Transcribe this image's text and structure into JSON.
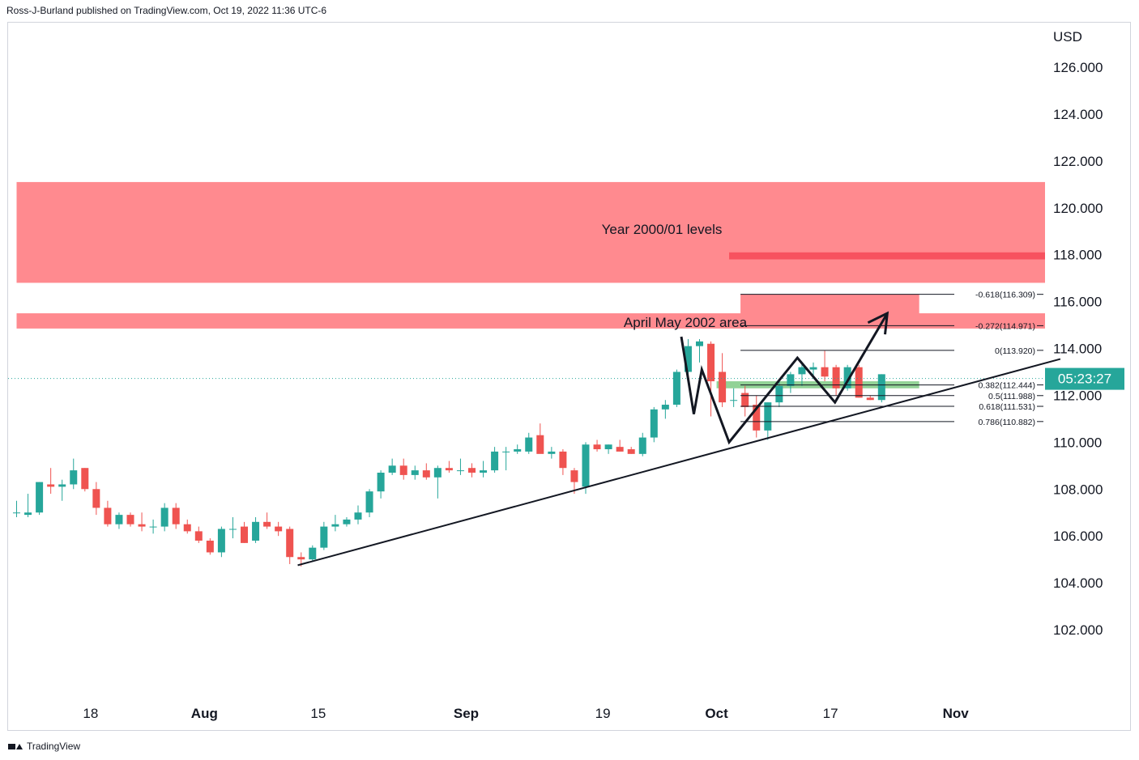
{
  "header": {
    "publisher": "Ross-J-Burland published on TradingView.com, Oct 19, 2022 11:36 UTC-6"
  },
  "footer": {
    "brand": "TradingView"
  },
  "colors": {
    "bull": "#26a69a",
    "bear": "#ef5350",
    "zone": "#ff8a8f",
    "zone_dark": "#f7525f",
    "support_zone": "#7fca84",
    "countdown_bg": "#26a69a"
  },
  "price_axis": {
    "currency": "USD",
    "countdown": "05:23:27"
  },
  "chart_data": {
    "type": "candlestick",
    "title": "",
    "y_unit": "USD",
    "ylim": [
      99.1,
      127.9
    ],
    "y_ticks": [
      {
        "label": "126.000",
        "value": 126
      },
      {
        "label": "124.000",
        "value": 124
      },
      {
        "label": "122.000",
        "value": 122
      },
      {
        "label": "120.000",
        "value": 120
      },
      {
        "label": "118.000",
        "value": 118
      },
      {
        "label": "116.000",
        "value": 116
      },
      {
        "label": "114.000",
        "value": 114
      },
      {
        "label": "112.000",
        "value": 112
      },
      {
        "label": "110.000",
        "value": 110
      },
      {
        "label": "108.000",
        "value": 108
      },
      {
        "label": "106.000",
        "value": 106
      },
      {
        "label": "104.000",
        "value": 104
      },
      {
        "label": "102.000",
        "value": 102
      }
    ],
    "x_ticks": [
      {
        "label": "18",
        "index": 6.5,
        "bold": false
      },
      {
        "label": "Aug",
        "index": 16.5,
        "bold": true
      },
      {
        "label": "15",
        "index": 26.5,
        "bold": false
      },
      {
        "label": "Sep",
        "index": 39.5,
        "bold": true
      },
      {
        "label": "19",
        "index": 51.5,
        "bold": false
      },
      {
        "label": "Oct",
        "index": 61.5,
        "bold": true
      },
      {
        "label": "17",
        "index": 71.5,
        "bold": false
      },
      {
        "label": "Nov",
        "index": 82.5,
        "bold": true
      }
    ],
    "last_price": 112.72,
    "candles": [
      {
        "o": 107.0,
        "h": 107.5,
        "l": 106.8,
        "c": 107.0
      },
      {
        "o": 106.9,
        "h": 107.8,
        "l": 106.8,
        "c": 107.0
      },
      {
        "o": 107.0,
        "h": 108.3,
        "l": 106.9,
        "c": 108.3
      },
      {
        "o": 108.2,
        "h": 108.9,
        "l": 107.8,
        "c": 108.1
      },
      {
        "o": 108.1,
        "h": 108.4,
        "l": 107.5,
        "c": 108.2
      },
      {
        "o": 108.2,
        "h": 109.3,
        "l": 108.0,
        "c": 108.8
      },
      {
        "o": 108.9,
        "h": 108.9,
        "l": 107.9,
        "c": 108.0
      },
      {
        "o": 108.0,
        "h": 108.3,
        "l": 106.9,
        "c": 107.2
      },
      {
        "o": 107.2,
        "h": 107.5,
        "l": 106.4,
        "c": 106.5
      },
      {
        "o": 106.5,
        "h": 107.0,
        "l": 106.3,
        "c": 106.9
      },
      {
        "o": 106.9,
        "h": 107.0,
        "l": 106.4,
        "c": 106.5
      },
      {
        "o": 106.5,
        "h": 107.0,
        "l": 106.2,
        "c": 106.4
      },
      {
        "o": 106.4,
        "h": 106.7,
        "l": 106.1,
        "c": 106.4
      },
      {
        "o": 106.4,
        "h": 107.4,
        "l": 106.2,
        "c": 107.2
      },
      {
        "o": 107.2,
        "h": 107.4,
        "l": 106.3,
        "c": 106.5
      },
      {
        "o": 106.5,
        "h": 106.7,
        "l": 106.1,
        "c": 106.2
      },
      {
        "o": 106.2,
        "h": 106.4,
        "l": 105.7,
        "c": 105.8
      },
      {
        "o": 105.8,
        "h": 105.9,
        "l": 105.2,
        "c": 105.3
      },
      {
        "o": 105.3,
        "h": 106.4,
        "l": 105.1,
        "c": 106.3
      },
      {
        "o": 106.3,
        "h": 106.8,
        "l": 105.9,
        "c": 106.3
      },
      {
        "o": 106.4,
        "h": 106.6,
        "l": 105.7,
        "c": 105.7
      },
      {
        "o": 105.8,
        "h": 106.8,
        "l": 105.7,
        "c": 106.6
      },
      {
        "o": 106.6,
        "h": 107.0,
        "l": 106.3,
        "c": 106.4
      },
      {
        "o": 106.4,
        "h": 106.6,
        "l": 106.0,
        "c": 106.2
      },
      {
        "o": 106.3,
        "h": 106.4,
        "l": 104.8,
        "c": 105.1
      },
      {
        "o": 105.1,
        "h": 105.3,
        "l": 104.7,
        "c": 105.0
      },
      {
        "o": 105.0,
        "h": 105.6,
        "l": 104.9,
        "c": 105.5
      },
      {
        "o": 105.5,
        "h": 106.6,
        "l": 105.4,
        "c": 106.4
      },
      {
        "o": 106.4,
        "h": 106.9,
        "l": 106.2,
        "c": 106.5
      },
      {
        "o": 106.5,
        "h": 106.8,
        "l": 106.4,
        "c": 106.7
      },
      {
        "o": 106.7,
        "h": 107.3,
        "l": 106.5,
        "c": 107.0
      },
      {
        "o": 107.0,
        "h": 108.0,
        "l": 106.8,
        "c": 107.9
      },
      {
        "o": 107.9,
        "h": 108.8,
        "l": 107.6,
        "c": 108.7
      },
      {
        "o": 108.7,
        "h": 109.3,
        "l": 108.6,
        "c": 109.0
      },
      {
        "o": 109.0,
        "h": 109.3,
        "l": 108.4,
        "c": 108.6
      },
      {
        "o": 108.6,
        "h": 109.0,
        "l": 108.4,
        "c": 108.8
      },
      {
        "o": 108.8,
        "h": 109.1,
        "l": 108.4,
        "c": 108.5
      },
      {
        "o": 108.5,
        "h": 109.0,
        "l": 107.6,
        "c": 108.9
      },
      {
        "o": 108.9,
        "h": 109.2,
        "l": 108.7,
        "c": 108.8
      },
      {
        "o": 108.8,
        "h": 109.3,
        "l": 108.6,
        "c": 108.8
      },
      {
        "o": 108.9,
        "h": 109.1,
        "l": 108.5,
        "c": 108.7
      },
      {
        "o": 108.7,
        "h": 109.2,
        "l": 108.5,
        "c": 108.8
      },
      {
        "o": 108.8,
        "h": 109.8,
        "l": 108.7,
        "c": 109.6
      },
      {
        "o": 109.6,
        "h": 109.8,
        "l": 108.8,
        "c": 109.6
      },
      {
        "o": 109.6,
        "h": 109.9,
        "l": 109.5,
        "c": 109.7
      },
      {
        "o": 109.6,
        "h": 110.4,
        "l": 109.5,
        "c": 110.2
      },
      {
        "o": 110.3,
        "h": 110.8,
        "l": 109.7,
        "c": 109.5
      },
      {
        "o": 109.5,
        "h": 109.8,
        "l": 109.3,
        "c": 109.6
      },
      {
        "o": 109.6,
        "h": 109.7,
        "l": 108.6,
        "c": 108.9
      },
      {
        "o": 108.8,
        "h": 108.9,
        "l": 107.8,
        "c": 108.3
      },
      {
        "o": 108.1,
        "h": 110.0,
        "l": 107.8,
        "c": 109.9
      },
      {
        "o": 109.9,
        "h": 110.1,
        "l": 109.6,
        "c": 109.7
      },
      {
        "o": 109.7,
        "h": 109.9,
        "l": 109.5,
        "c": 109.9
      },
      {
        "o": 109.8,
        "h": 110.1,
        "l": 109.6,
        "c": 109.6
      },
      {
        "o": 109.7,
        "h": 109.8,
        "l": 109.5,
        "c": 109.5
      },
      {
        "o": 109.5,
        "h": 110.4,
        "l": 109.4,
        "c": 110.2
      },
      {
        "o": 110.2,
        "h": 111.5,
        "l": 110.0,
        "c": 111.4
      },
      {
        "o": 111.4,
        "h": 111.8,
        "l": 111.0,
        "c": 111.6
      },
      {
        "o": 111.6,
        "h": 113.1,
        "l": 111.5,
        "c": 113.0
      },
      {
        "o": 113.0,
        "h": 114.4,
        "l": 112.8,
        "c": 114.1
      },
      {
        "o": 114.1,
        "h": 114.4,
        "l": 113.4,
        "c": 114.3
      },
      {
        "o": 114.2,
        "h": 114.3,
        "l": 111.1,
        "c": 112.6
      },
      {
        "o": 113.0,
        "h": 113.8,
        "l": 111.5,
        "c": 111.7
      },
      {
        "o": 111.8,
        "h": 112.3,
        "l": 111.5,
        "c": 111.8
      },
      {
        "o": 112.1,
        "h": 112.4,
        "l": 111.1,
        "c": 111.5
      },
      {
        "o": 111.6,
        "h": 112.0,
        "l": 110.2,
        "c": 110.5
      },
      {
        "o": 110.5,
        "h": 111.7,
        "l": 110.1,
        "c": 111.7
      },
      {
        "o": 111.7,
        "h": 112.6,
        "l": 111.5,
        "c": 112.4
      },
      {
        "o": 112.4,
        "h": 113.0,
        "l": 112.1,
        "c": 112.9
      },
      {
        "o": 112.9,
        "h": 113.4,
        "l": 112.4,
        "c": 113.2
      },
      {
        "o": 113.1,
        "h": 113.4,
        "l": 112.7,
        "c": 113.2
      },
      {
        "o": 113.2,
        "h": 113.9,
        "l": 112.6,
        "c": 112.8
      },
      {
        "o": 113.2,
        "h": 113.3,
        "l": 112.0,
        "c": 112.3
      },
      {
        "o": 112.3,
        "h": 113.3,
        "l": 112.2,
        "c": 113.2
      },
      {
        "o": 113.2,
        "h": 113.3,
        "l": 111.9,
        "c": 111.9
      },
      {
        "o": 111.9,
        "h": 112.0,
        "l": 111.8,
        "c": 111.8
      },
      {
        "o": 111.8,
        "h": 112.9,
        "l": 111.7,
        "c": 112.9
      }
    ],
    "zones": [
      {
        "label": "Year 2000/01 levels",
        "from": 116.8,
        "to": 121.1,
        "start_index": 0,
        "style": "zone"
      },
      {
        "label": "",
        "from": 117.8,
        "to": 118.1,
        "start_index": 62.6,
        "style": "zone_dark"
      },
      {
        "label": "April May 2002 area",
        "from": 114.85,
        "to": 115.5,
        "start_index": 0,
        "style": "zone"
      },
      {
        "label": "",
        "from": 114.97,
        "to": 116.3,
        "start_index": 63.6,
        "end_index": 79.3,
        "style": "zone"
      },
      {
        "label": "",
        "from": 112.3,
        "to": 112.6,
        "start_index": 61.5,
        "end_index": 79.3,
        "style": "support_zone"
      }
    ],
    "fib_levels": [
      {
        "label": "-0.618(116.309)",
        "value": 116.309
      },
      {
        "label": "-0.272(114.971)",
        "value": 114.971
      },
      {
        "label": "0(113.920)",
        "value": 113.92
      },
      {
        "label": "0.382(112.444)",
        "value": 112.444
      },
      {
        "label": "0.5(111.988)",
        "value": 111.988
      },
      {
        "label": "0.618(111.531)",
        "value": 111.531
      },
      {
        "label": "0.786(110.882)",
        "value": 110.882
      }
    ],
    "trendline": [
      {
        "index": 24.7,
        "value": 104.75
      },
      {
        "index": 91.7,
        "value": 113.55
      }
    ],
    "projection_path": [
      {
        "index": 58.4,
        "value": 114.5
      },
      {
        "index": 59.5,
        "value": 111.2
      },
      {
        "index": 60.2,
        "value": 113.1
      },
      {
        "index": 62.6,
        "value": 110.0
      },
      {
        "index": 68.6,
        "value": 113.6
      },
      {
        "index": 71.9,
        "value": 111.7
      },
      {
        "index": 76.5,
        "value": 115.5
      }
    ],
    "arrow_head": [
      {
        "index": 74.8,
        "value": 115.1
      },
      {
        "index": 76.5,
        "value": 115.5
      },
      {
        "index": 76.3,
        "value": 114.6
      }
    ]
  }
}
